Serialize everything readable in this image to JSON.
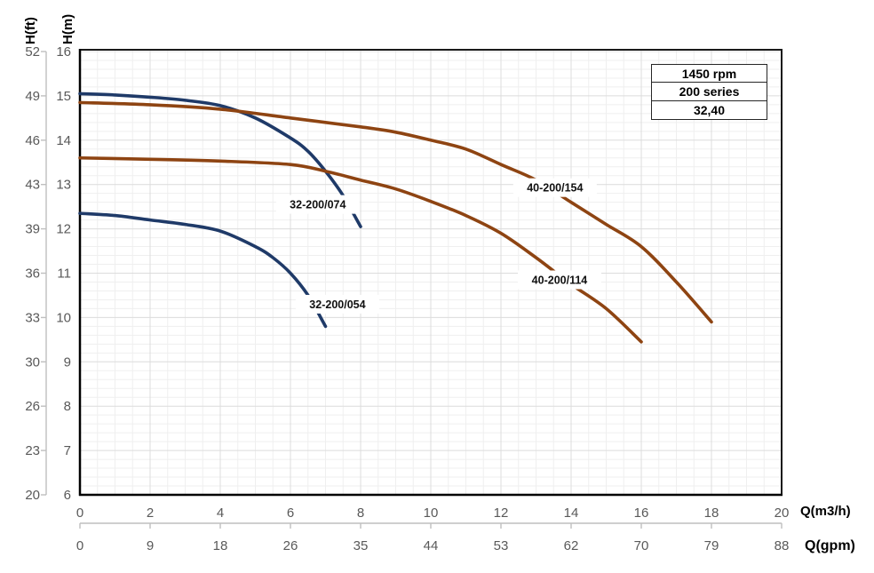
{
  "axes": {
    "y_primary": {
      "title": "H(ft)",
      "ticks": [
        52,
        49,
        46,
        43,
        39,
        36,
        33,
        30,
        26,
        23,
        20
      ]
    },
    "y_secondary": {
      "title": "H(m)",
      "ticks": [
        16,
        15,
        14,
        13,
        12,
        11,
        10,
        9,
        8,
        7,
        6
      ],
      "min": 6,
      "max": 16
    },
    "x_primary": {
      "title": "Q(m3/h)",
      "ticks": [
        0,
        2,
        4,
        6,
        8,
        10,
        12,
        14,
        16,
        18,
        20
      ],
      "min": 0,
      "max": 20
    },
    "x_secondary": {
      "title": "Q(gpm)",
      "ticks": [
        0,
        9,
        18,
        26,
        35,
        44,
        53,
        62,
        70,
        79,
        88
      ]
    }
  },
  "legend": {
    "rows": [
      "1450 rpm",
      "200 series",
      "32,40"
    ]
  },
  "colors": {
    "blue_series": "#1f3a68",
    "brown_series": "#8e4412",
    "tick_text": "#595959",
    "minor_grid": "#efefef",
    "major_grid": "#dcdcdc",
    "axis_line": "#bfbfbf",
    "border": "#1a1a1a",
    "label_text": "#111111"
  },
  "chart_data": {
    "type": "line",
    "title": "",
    "xlabel": "Q(m3/h)",
    "ylabel": "H(m)",
    "xlim": [
      0,
      20
    ],
    "ylim": [
      6,
      16
    ],
    "x_secondary_label": "Q(gpm)",
    "grid": {
      "minor_x": 0.5,
      "major_x": 2,
      "minor_y": 0.2,
      "major_y": 1,
      "on": true
    },
    "legend_box": [
      "1450 rpm",
      "200 series",
      "32,40"
    ],
    "series": [
      {
        "name": "32-200/074",
        "color": "#1f3a68",
        "points": [
          [
            0,
            15.05
          ],
          [
            1,
            15.02
          ],
          [
            2,
            14.97
          ],
          [
            3,
            14.9
          ],
          [
            4,
            14.78
          ],
          [
            5,
            14.5
          ],
          [
            6,
            14.05
          ],
          [
            6.5,
            13.75
          ],
          [
            7,
            13.3
          ],
          [
            7.5,
            12.75
          ],
          [
            8,
            12.05
          ]
        ],
        "label_pos": [
          6.78,
          12.55
        ]
      },
      {
        "name": "32-200/054",
        "color": "#1f3a68",
        "points": [
          [
            0,
            12.35
          ],
          [
            1,
            12.3
          ],
          [
            2,
            12.2
          ],
          [
            3,
            12.1
          ],
          [
            4,
            11.95
          ],
          [
            5,
            11.6
          ],
          [
            5.5,
            11.35
          ],
          [
            6,
            11.0
          ],
          [
            6.5,
            10.5
          ],
          [
            7,
            9.8
          ]
        ],
        "label_pos": [
          7.34,
          10.3
        ]
      },
      {
        "name": "40-200/154",
        "color": "#8e4412",
        "points": [
          [
            0,
            14.85
          ],
          [
            2,
            14.8
          ],
          [
            4,
            14.7
          ],
          [
            6,
            14.5
          ],
          [
            8,
            14.3
          ],
          [
            9,
            14.18
          ],
          [
            10,
            14.0
          ],
          [
            11,
            13.8
          ],
          [
            12,
            13.45
          ],
          [
            13,
            13.1
          ],
          [
            14,
            12.6
          ],
          [
            15,
            12.1
          ],
          [
            16,
            11.6
          ],
          [
            17,
            10.8
          ],
          [
            18,
            9.9
          ]
        ],
        "label_pos": [
          13.54,
          12.93
        ]
      },
      {
        "name": "40-200/114",
        "color": "#8e4412",
        "points": [
          [
            0,
            13.6
          ],
          [
            2,
            13.57
          ],
          [
            4,
            13.53
          ],
          [
            6,
            13.45
          ],
          [
            7,
            13.3
          ],
          [
            8,
            13.1
          ],
          [
            9,
            12.9
          ],
          [
            10,
            12.62
          ],
          [
            11,
            12.3
          ],
          [
            12,
            11.9
          ],
          [
            13,
            11.35
          ],
          [
            14,
            10.75
          ],
          [
            15,
            10.2
          ],
          [
            16,
            9.45
          ]
        ],
        "label_pos": [
          13.67,
          10.85
        ]
      }
    ]
  }
}
